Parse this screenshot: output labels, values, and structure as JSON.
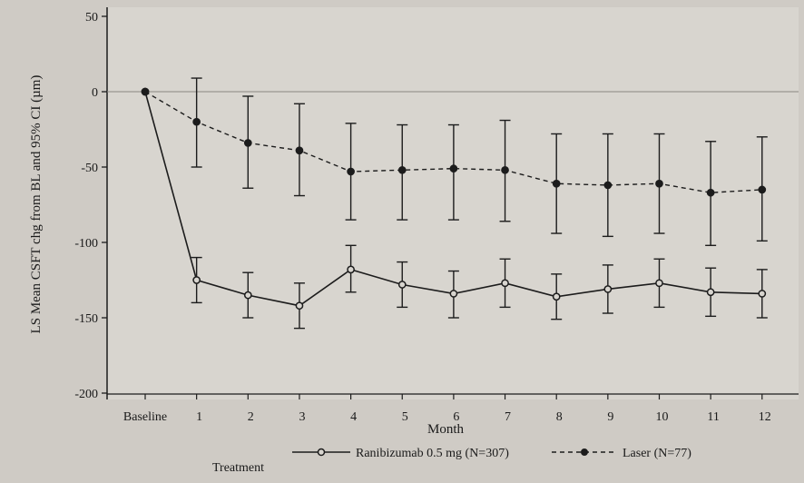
{
  "chart_data": {
    "type": "line",
    "title": "",
    "xlabel": "Month",
    "ylabel": "LS Mean CSFT chg from BL and 95% CI (µm)",
    "categories": [
      "Baseline",
      "1",
      "2",
      "3",
      "4",
      "5",
      "6",
      "7",
      "8",
      "9",
      "10",
      "11",
      "12"
    ],
    "ylim": [
      -200,
      50
    ],
    "yticks": [
      "50",
      "0",
      "-50",
      "-100",
      "-150",
      "-200"
    ],
    "ytick_values": [
      50,
      0,
      -50,
      -100,
      -150,
      -200
    ],
    "grid": false,
    "legend_position": "bottom",
    "legend_title": "Treatment",
    "series": [
      {
        "name": "Ranibizumab 0.5 mg (N=307)",
        "line_style": "solid",
        "marker": "open-circle",
        "values": [
          0,
          -125,
          -135,
          -142,
          -118,
          -128,
          -134,
          -127,
          -136,
          -131,
          -127,
          -133,
          -134
        ],
        "ci_lower": [
          0,
          -140,
          -150,
          -157,
          -133,
          -143,
          -150,
          -143,
          -151,
          -147,
          -143,
          -149,
          -150
        ],
        "ci_upper": [
          0,
          -110,
          -120,
          -127,
          -102,
          -113,
          -119,
          -111,
          -121,
          -115,
          -111,
          -117,
          -118
        ]
      },
      {
        "name": "Laser (N=77)",
        "line_style": "dashed",
        "marker": "filled-circle",
        "values": [
          0,
          -20,
          -34,
          -39,
          -53,
          -52,
          -51,
          -52,
          -61,
          -62,
          -61,
          -67,
          -65
        ],
        "ci_lower": [
          0,
          -50,
          -64,
          -69,
          -85,
          -85,
          -85,
          -86,
          -94,
          -96,
          -94,
          -102,
          -99
        ],
        "ci_upper": [
          0,
          9,
          -3,
          -8,
          -21,
          -22,
          -22,
          -19,
          -28,
          -28,
          -28,
          -33,
          -30
        ]
      }
    ],
    "colors": {
      "line": "#1c1c1c",
      "background": "#cfcbc5",
      "plot_fill": "#d8d5cf"
    }
  }
}
